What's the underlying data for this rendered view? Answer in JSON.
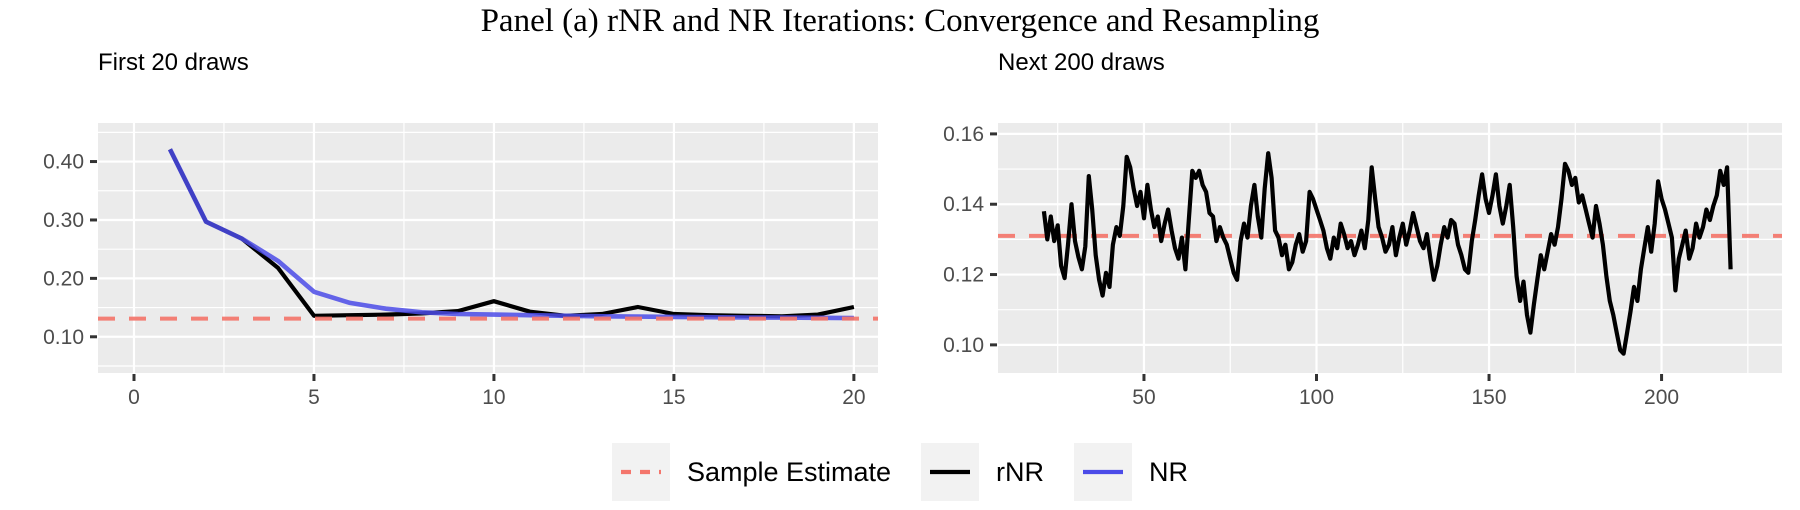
{
  "title": "Panel (a) rNR and NR Iterations: Convergence and Resampling",
  "colors": {
    "panel_bg": "#EBEBEB",
    "grid": "#FFFFFF",
    "axis_text": "#4D4D4D",
    "tick_mark": "#333333",
    "legend_key_bg": "#F2F2F2",
    "sample_estimate": "#F4766C",
    "rnr": "#000000",
    "nr": "#4B4BE8"
  },
  "legend": {
    "items": [
      {
        "label": "Sample Estimate",
        "color_key": "sample_estimate",
        "style": "dashed"
      },
      {
        "label": "rNR",
        "color_key": "rnr",
        "style": "solid"
      },
      {
        "label": "NR",
        "color_key": "nr",
        "style": "solid"
      }
    ]
  },
  "chart_data": [
    {
      "type": "line",
      "title": "First 20 draws",
      "x_start": 1,
      "xlabel": "",
      "ylabel": "",
      "x_ticks": [
        0,
        5,
        10,
        15,
        20
      ],
      "x_minor": [
        2.5,
        7.5,
        12.5,
        17.5
      ],
      "y_ticks": [
        0.1,
        0.2,
        0.3,
        0.4
      ],
      "y_tick_labels": [
        "0.10",
        "0.20",
        "0.30",
        "0.40"
      ],
      "y_minor": [
        0.05,
        0.15,
        0.25,
        0.35,
        0.45
      ],
      "xlim": [
        -1.0,
        20.67
      ],
      "ylim": [
        0.038,
        0.466
      ],
      "grid": true,
      "hline": {
        "name": "Sample Estimate",
        "value": 0.131,
        "style": "dashed"
      },
      "series": [
        {
          "name": "rNR",
          "values": [
            0.421,
            0.297,
            0.268,
            0.218,
            0.136,
            0.137,
            0.138,
            0.14,
            0.144,
            0.161,
            0.143,
            0.136,
            0.139,
            0.151,
            0.139,
            0.137,
            0.136,
            0.135,
            0.138,
            0.151
          ]
        },
        {
          "name": "NR",
          "values": [
            0.421,
            0.297,
            0.268,
            0.23,
            0.177,
            0.158,
            0.148,
            0.142,
            0.139,
            0.138,
            0.137,
            0.136,
            0.135,
            0.1345,
            0.134,
            0.1335,
            0.133,
            0.1328,
            0.1325,
            0.132
          ]
        }
      ]
    },
    {
      "type": "line",
      "title": "Next 200 draws",
      "x_start": 21,
      "xlabel": "",
      "ylabel": "",
      "x_ticks": [
        50,
        100,
        150,
        200
      ],
      "x_minor": [
        25,
        75,
        125,
        175,
        225
      ],
      "y_ticks": [
        0.1,
        0.12,
        0.14,
        0.16
      ],
      "y_tick_labels": [
        "0.10",
        "0.12",
        "0.14",
        "0.16"
      ],
      "y_minor": [
        0.11,
        0.13,
        0.15
      ],
      "xlim": [
        7.7,
        234.9
      ],
      "ylim": [
        0.092,
        0.1631
      ],
      "grid": true,
      "hline": {
        "name": "Sample Estimate",
        "value": 0.131,
        "style": "dashed"
      },
      "series": [
        {
          "name": "rNR",
          "values": [
            0.138,
            0.13,
            0.1365,
            0.1295,
            0.134,
            0.1225,
            0.119,
            0.1285,
            0.14,
            0.1295,
            0.125,
            0.1215,
            0.128,
            0.148,
            0.1385,
            0.1255,
            0.1185,
            0.114,
            0.1205,
            0.1165,
            0.1285,
            0.1335,
            0.131,
            0.1395,
            0.1535,
            0.1505,
            0.1445,
            0.1395,
            0.1435,
            0.136,
            0.1455,
            0.1385,
            0.1335,
            0.1365,
            0.1295,
            0.1345,
            0.1385,
            0.1325,
            0.1275,
            0.1245,
            0.1305,
            0.1215,
            0.1355,
            0.1495,
            0.1475,
            0.1495,
            0.1455,
            0.1435,
            0.1375,
            0.1365,
            0.1295,
            0.1335,
            0.1305,
            0.1285,
            0.1245,
            0.1205,
            0.1185,
            0.1295,
            0.1345,
            0.1305,
            0.1395,
            0.1455,
            0.1365,
            0.1305,
            0.1445,
            0.1545,
            0.1475,
            0.1325,
            0.1305,
            0.1255,
            0.1285,
            0.1215,
            0.1235,
            0.1285,
            0.1315,
            0.1265,
            0.1295,
            0.1435,
            0.1415,
            0.1385,
            0.1355,
            0.1325,
            0.1275,
            0.1245,
            0.1305,
            0.1275,
            0.1345,
            0.1315,
            0.1275,
            0.1295,
            0.1255,
            0.1285,
            0.1325,
            0.1275,
            0.1355,
            0.1505,
            0.1415,
            0.1335,
            0.1305,
            0.1265,
            0.1285,
            0.1335,
            0.1255,
            0.1305,
            0.1345,
            0.1285,
            0.1325,
            0.1375,
            0.1335,
            0.1295,
            0.1275,
            0.1315,
            0.1245,
            0.1185,
            0.1225,
            0.1285,
            0.1335,
            0.1305,
            0.1355,
            0.1345,
            0.1285,
            0.1255,
            0.1215,
            0.1205,
            0.1295,
            0.1355,
            0.1425,
            0.1485,
            0.1415,
            0.1375,
            0.1425,
            0.1485,
            0.1395,
            0.1345,
            0.1395,
            0.1455,
            0.1335,
            0.1195,
            0.1125,
            0.118,
            0.1085,
            0.1035,
            0.1115,
            0.1185,
            0.1255,
            0.1215,
            0.1265,
            0.1315,
            0.1285,
            0.1335,
            0.1415,
            0.1515,
            0.1495,
            0.1455,
            0.1475,
            0.1405,
            0.1425,
            0.1385,
            0.1345,
            0.1305,
            0.1395,
            0.1345,
            0.1285,
            0.1195,
            0.1125,
            0.1085,
            0.1035,
            0.0985,
            0.0975,
            0.1035,
            0.1095,
            0.1165,
            0.1125,
            0.1215,
            0.1275,
            0.1335,
            0.1265,
            0.1345,
            0.1465,
            0.1415,
            0.1385,
            0.1345,
            0.1305,
            0.1155,
            0.1245,
            0.1285,
            0.1325,
            0.1245,
            0.1275,
            0.1345,
            0.1305,
            0.1335,
            0.1385,
            0.1355,
            0.1395,
            0.1425,
            0.1495,
            0.1455,
            0.1505,
            0.1215
          ]
        }
      ]
    }
  ]
}
